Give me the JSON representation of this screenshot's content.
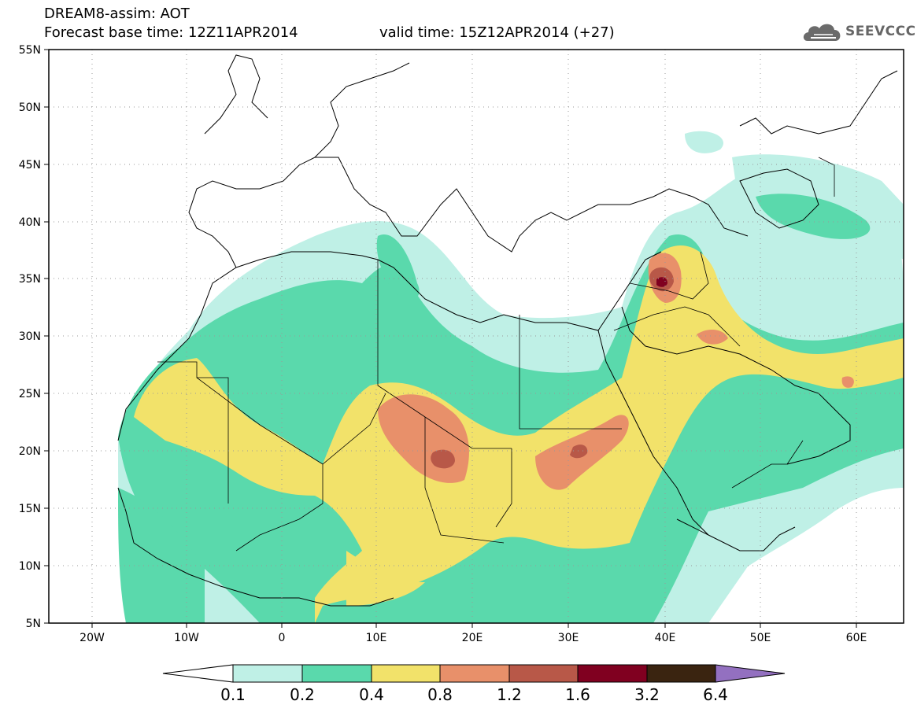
{
  "header": {
    "line1": "DREAM8-assim: AOT",
    "forecast": "Forecast base time: 12Z11APR2014",
    "valid": "valid time: 15Z12APR2014 (+27)"
  },
  "logo": {
    "text": "SEEVCCC",
    "icon": "cloud-icon",
    "color": "#6b6b6b"
  },
  "map_data": {
    "lon_range": [
      -25,
      65
    ],
    "lat_range": [
      5,
      55
    ],
    "lat_ticks": [
      "5N",
      "10N",
      "15N",
      "20N",
      "25N",
      "30N",
      "35N",
      "40N",
      "45N",
      "50N",
      "55N"
    ],
    "lon_ticks": [
      "20W",
      "10W",
      "0",
      "10E",
      "20E",
      "30E",
      "40E",
      "50E",
      "60E"
    ],
    "gridlines": "dotted"
  },
  "colorbar": {
    "labels": [
      "0.1",
      "0.2",
      "0.4",
      "0.8",
      "1.2",
      "1.6",
      "3.2",
      "6.4"
    ],
    "colors": [
      "#ffffff",
      "#bff0e6",
      "#5ad9ac",
      "#f2e26a",
      "#e8906a",
      "#b85848",
      "#800020",
      "#3a2410",
      "#9370c0"
    ]
  }
}
